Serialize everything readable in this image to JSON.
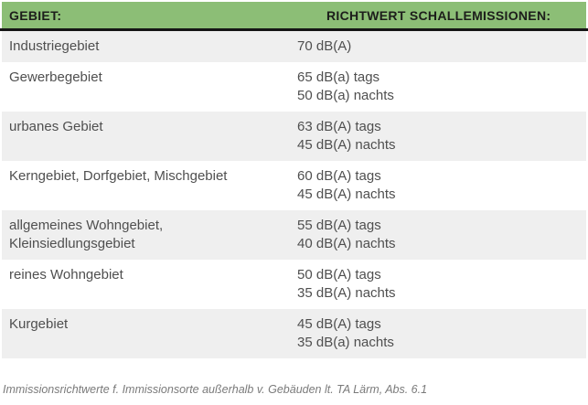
{
  "chart_data": {
    "type": "table",
    "columns": [
      "GEBIET:",
      "RICHTWERT SCHALLEMISSIONEN:"
    ],
    "rows": [
      {
        "area_lines": [
          "Industriegebiet"
        ],
        "value_lines": [
          "70 dB(A)"
        ]
      },
      {
        "area_lines": [
          "Gewerbegebiet"
        ],
        "value_lines": [
          "65 dB(a) tags",
          "50 dB(a) nachts"
        ]
      },
      {
        "area_lines": [
          "urbanes Gebiet"
        ],
        "value_lines": [
          "63 dB(A) tags",
          "45 dB(A) nachts"
        ]
      },
      {
        "area_lines": [
          "Kerngebiet, Dorfgebiet, Mischgebiet"
        ],
        "value_lines": [
          "60 dB(A) tags",
          "45 dB(A) nachts"
        ]
      },
      {
        "area_lines": [
          "allgemeines Wohngebiet,",
          "Kleinsiedlungsgebiet"
        ],
        "value_lines": [
          "55 dB(A) tags",
          "40 dB(A) nachts"
        ]
      },
      {
        "area_lines": [
          "reines Wohngebiet"
        ],
        "value_lines": [
          "50 dB(A) tags",
          "35 dB(A) nachts"
        ]
      },
      {
        "area_lines": [
          "Kurgebiet"
        ],
        "value_lines": [
          "45 dB(A) tags",
          "35 dB(a) nachts"
        ]
      }
    ],
    "caption": "Immissionsrichtwerte f. Immissionsorte außerhalb v. Gebäuden lt. TA Lärm, Abs. 6.1"
  },
  "colors": {
    "header_green": "#8cbe76",
    "header_text": "#1d1d1b",
    "rule_dark": "#151515",
    "row_alt_gray": "#efefef",
    "body_text": "#4f4f4f",
    "caption_text": "#7a7a7a"
  }
}
